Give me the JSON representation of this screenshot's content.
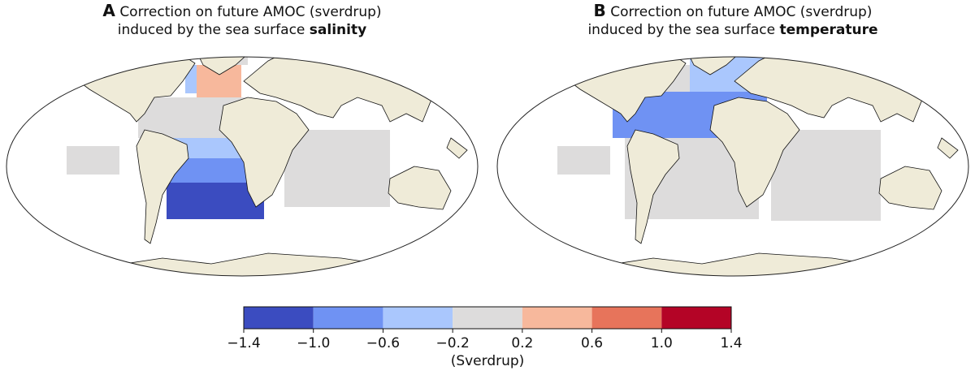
{
  "panels": [
    {
      "letter": "A",
      "title_line1": "Correction on future AMOC (sverdrup)",
      "title_line2": "induced by the sea surface",
      "title_emphasis": "salinity",
      "region_values": [
        -0.4,
        0.4,
        0,
        0,
        -0.4,
        -0.8,
        -1.2,
        0,
        0
      ]
    },
    {
      "letter": "B",
      "title_line1": "Correction on future AMOC (sverdrup)",
      "title_line2": "induced by the sea surface",
      "title_emphasis": "temperature",
      "region_values": [
        -0.4,
        0,
        -0.8,
        0,
        0,
        0
      ]
    }
  ],
  "colorbar": {
    "label": "(Sverdrup)",
    "bounds": [
      {
        "value": -1.4,
        "label": "−1.4"
      },
      {
        "value": -1.0,
        "label": "−1.0"
      },
      {
        "value": -0.6,
        "label": "−0.6"
      },
      {
        "value": -0.2,
        "label": "−0.2"
      },
      0.2,
      0.6,
      {
        "value": 1.0,
        "label": "1.0"
      },
      1.4
    ],
    "colors": [
      "#3b4cc0",
      "#6f92f3",
      "#aac7fd",
      "#dddcdc",
      "#f7b89c",
      "#e7745b",
      "#b40426"
    ]
  }
}
